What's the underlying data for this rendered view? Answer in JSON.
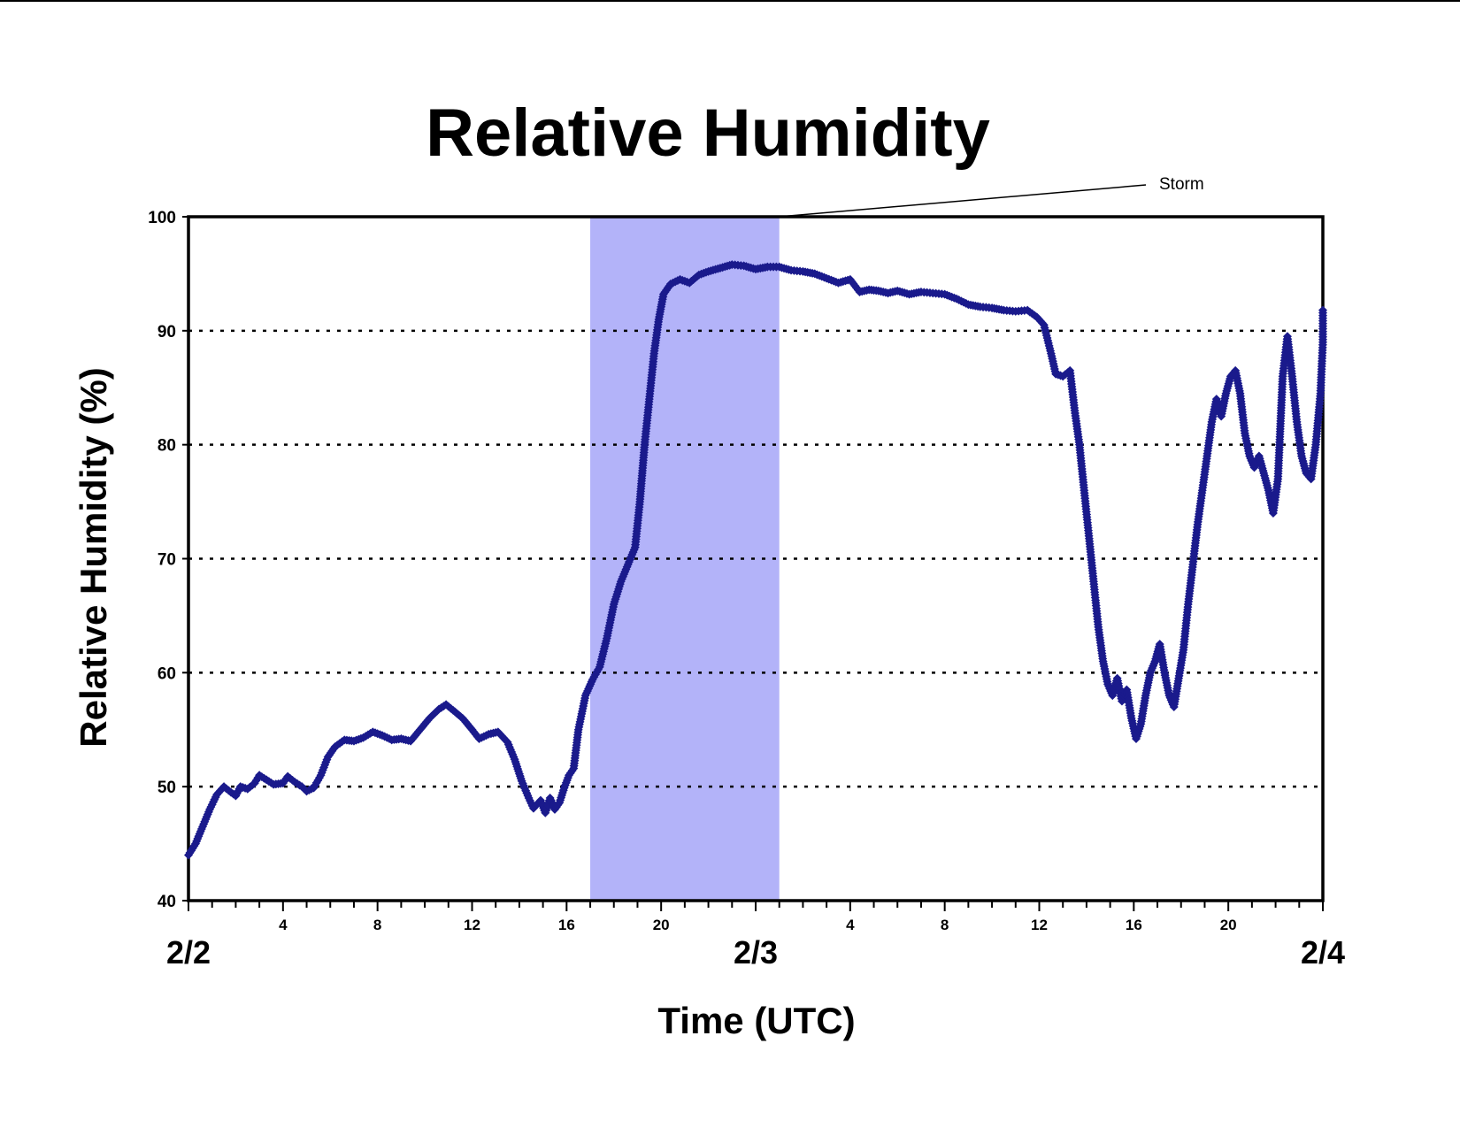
{
  "chart_data": {
    "type": "scatter",
    "title": "Relative Humidity",
    "ylabel": "Relative Humidity (%)",
    "xlabel": "Time (UTC)",
    "ylim": [
      40,
      100
    ],
    "xlim_hours": [
      0,
      48
    ],
    "y_ticks": [
      "40",
      "50",
      "60",
      "70",
      "80",
      "90",
      "100"
    ],
    "hour_tick_labels": [
      {
        "hour": 4,
        "label": "4"
      },
      {
        "hour": 8,
        "label": "8"
      },
      {
        "hour": 12,
        "label": "12"
      },
      {
        "hour": 16,
        "label": "16"
      },
      {
        "hour": 20,
        "label": "20"
      },
      {
        "hour": 28,
        "label": "4"
      },
      {
        "hour": 32,
        "label": "8"
      },
      {
        "hour": 36,
        "label": "12"
      },
      {
        "hour": 40,
        "label": "16"
      },
      {
        "hour": 44,
        "label": "20"
      }
    ],
    "day_labels": [
      {
        "hour": 0,
        "label": "2/2"
      },
      {
        "hour": 24,
        "label": "2/3"
      },
      {
        "hour": 48,
        "label": "2/4"
      }
    ],
    "grid": {
      "horizontal_dotted": [
        50,
        60,
        70,
        80,
        90
      ]
    },
    "shaded_region": {
      "start_hour": 17.0,
      "end_hour": 25.0,
      "color": "#b3b3f9"
    },
    "annotation": {
      "text": "Storm",
      "points_to_hour": 25.0
    },
    "marker_color": "#1a1a8c",
    "series": [
      {
        "values": [
          [
            0.0,
            44.0
          ],
          [
            0.3,
            45.0
          ],
          [
            0.6,
            46.5
          ],
          [
            0.9,
            48.0
          ],
          [
            1.2,
            49.3
          ],
          [
            1.5,
            50.0
          ],
          [
            1.8,
            49.5
          ],
          [
            2.0,
            49.2
          ],
          [
            2.2,
            50.0
          ],
          [
            2.5,
            49.8
          ],
          [
            2.8,
            50.3
          ],
          [
            3.0,
            51.0
          ],
          [
            3.3,
            50.6
          ],
          [
            3.6,
            50.2
          ],
          [
            4.0,
            50.3
          ],
          [
            4.2,
            50.9
          ],
          [
            4.5,
            50.4
          ],
          [
            4.8,
            50.0
          ],
          [
            5.0,
            49.6
          ],
          [
            5.3,
            49.9
          ],
          [
            5.6,
            51.0
          ],
          [
            5.9,
            52.6
          ],
          [
            6.2,
            53.5
          ],
          [
            6.6,
            54.1
          ],
          [
            7.0,
            54.0
          ],
          [
            7.4,
            54.3
          ],
          [
            7.8,
            54.8
          ],
          [
            8.2,
            54.5
          ],
          [
            8.6,
            54.1
          ],
          [
            9.0,
            54.2
          ],
          [
            9.4,
            54.0
          ],
          [
            9.8,
            55.0
          ],
          [
            10.2,
            56.0
          ],
          [
            10.6,
            56.8
          ],
          [
            10.9,
            57.2
          ],
          [
            11.2,
            56.7
          ],
          [
            11.6,
            56.0
          ],
          [
            12.0,
            55.0
          ],
          [
            12.3,
            54.2
          ],
          [
            12.7,
            54.6
          ],
          [
            13.1,
            54.8
          ],
          [
            13.5,
            53.9
          ],
          [
            13.8,
            52.4
          ],
          [
            14.1,
            50.5
          ],
          [
            14.4,
            49.0
          ],
          [
            14.6,
            48.1
          ],
          [
            14.9,
            48.8
          ],
          [
            15.1,
            47.7
          ],
          [
            15.3,
            49.0
          ],
          [
            15.5,
            48.0
          ],
          [
            15.7,
            48.6
          ],
          [
            15.9,
            49.9
          ],
          [
            16.1,
            51.0
          ],
          [
            16.3,
            51.6
          ],
          [
            16.5,
            55.0
          ],
          [
            16.8,
            58.0
          ],
          [
            17.1,
            59.4
          ],
          [
            17.4,
            60.5
          ],
          [
            17.7,
            63.0
          ],
          [
            18.0,
            66.0
          ],
          [
            18.3,
            68.0
          ],
          [
            18.6,
            69.5
          ],
          [
            18.9,
            71.0
          ],
          [
            19.1,
            75.0
          ],
          [
            19.3,
            80.0
          ],
          [
            19.5,
            84.0
          ],
          [
            19.7,
            88.0
          ],
          [
            19.9,
            91.0
          ],
          [
            20.1,
            93.2
          ],
          [
            20.4,
            94.1
          ],
          [
            20.8,
            94.5
          ],
          [
            21.2,
            94.2
          ],
          [
            21.6,
            94.9
          ],
          [
            22.0,
            95.2
          ],
          [
            22.5,
            95.5
          ],
          [
            23.0,
            95.8
          ],
          [
            23.5,
            95.7
          ],
          [
            24.0,
            95.4
          ],
          [
            24.5,
            95.6
          ],
          [
            25.0,
            95.6
          ],
          [
            25.5,
            95.3
          ],
          [
            26.0,
            95.2
          ],
          [
            26.5,
            95.0
          ],
          [
            27.0,
            94.6
          ],
          [
            27.5,
            94.2
          ],
          [
            28.0,
            94.5
          ],
          [
            28.4,
            93.4
          ],
          [
            28.8,
            93.6
          ],
          [
            29.2,
            93.5
          ],
          [
            29.6,
            93.3
          ],
          [
            30.0,
            93.5
          ],
          [
            30.5,
            93.2
          ],
          [
            31.0,
            93.4
          ],
          [
            31.5,
            93.3
          ],
          [
            32.0,
            93.2
          ],
          [
            32.5,
            92.8
          ],
          [
            33.0,
            92.3
          ],
          [
            33.5,
            92.1
          ],
          [
            34.0,
            92.0
          ],
          [
            34.5,
            91.8
          ],
          [
            35.0,
            91.7
          ],
          [
            35.5,
            91.8
          ],
          [
            35.9,
            91.2
          ],
          [
            36.2,
            90.5
          ],
          [
            36.5,
            88.0
          ],
          [
            36.7,
            86.2
          ],
          [
            37.0,
            86.0
          ],
          [
            37.3,
            86.5
          ],
          [
            37.5,
            83.0
          ],
          [
            37.7,
            80.0
          ],
          [
            37.9,
            76.0
          ],
          [
            38.1,
            72.0
          ],
          [
            38.3,
            68.0
          ],
          [
            38.5,
            64.0
          ],
          [
            38.7,
            61.0
          ],
          [
            38.9,
            59.0
          ],
          [
            39.1,
            58.0
          ],
          [
            39.3,
            59.5
          ],
          [
            39.5,
            57.5
          ],
          [
            39.7,
            58.5
          ],
          [
            39.9,
            56.0
          ],
          [
            40.1,
            54.2
          ],
          [
            40.3,
            55.5
          ],
          [
            40.5,
            58.0
          ],
          [
            40.7,
            60.0
          ],
          [
            40.9,
            61.0
          ],
          [
            41.1,
            62.5
          ],
          [
            41.3,
            60.0
          ],
          [
            41.5,
            58.0
          ],
          [
            41.7,
            57.0
          ],
          [
            41.9,
            59.5
          ],
          [
            42.1,
            62.0
          ],
          [
            42.3,
            66.0
          ],
          [
            42.5,
            69.5
          ],
          [
            42.7,
            73.0
          ],
          [
            42.9,
            76.0
          ],
          [
            43.1,
            79.0
          ],
          [
            43.3,
            82.0
          ],
          [
            43.5,
            84.0
          ],
          [
            43.7,
            82.5
          ],
          [
            43.9,
            84.5
          ],
          [
            44.1,
            86.0
          ],
          [
            44.3,
            86.5
          ],
          [
            44.5,
            84.5
          ],
          [
            44.7,
            81.0
          ],
          [
            44.9,
            79.0
          ],
          [
            45.1,
            78.0
          ],
          [
            45.3,
            79.0
          ],
          [
            45.5,
            77.5
          ],
          [
            45.7,
            76.0
          ],
          [
            45.9,
            74.0
          ],
          [
            46.1,
            77.0
          ],
          [
            46.3,
            86.0
          ],
          [
            46.5,
            89.5
          ],
          [
            46.7,
            86.0
          ],
          [
            46.9,
            82.0
          ],
          [
            47.1,
            79.0
          ],
          [
            47.3,
            77.5
          ],
          [
            47.5,
            77.0
          ],
          [
            47.7,
            80.0
          ],
          [
            47.9,
            84.5
          ],
          [
            48.0,
            89.0
          ],
          [
            48.0,
            91.8
          ]
        ]
      }
    ]
  }
}
